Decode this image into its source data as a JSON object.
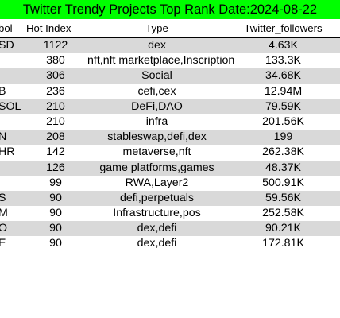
{
  "title": "Twitter Trendy Projects Top Rank Date:2024-08-22",
  "colors": {
    "title_background": "#00ff00",
    "row_shade": "#d9d9d9",
    "header_rule": "#000000"
  },
  "table": {
    "headers": {
      "symbol": "bol",
      "hot_index": "Hot Index",
      "type": "Type",
      "twitter_followers": "Twitter_followers"
    },
    "rows": [
      {
        "symbol": "SD",
        "hot_index": "1122",
        "type": "dex",
        "twitter_followers": "4.63K"
      },
      {
        "symbol": "",
        "hot_index": "380",
        "type": "nft,nft marketplace,Inscription",
        "twitter_followers": "133.3K"
      },
      {
        "symbol": "",
        "hot_index": "306",
        "type": "Social",
        "twitter_followers": "34.68K"
      },
      {
        "symbol": "B",
        "hot_index": "236",
        "type": "cefi,cex",
        "twitter_followers": "12.94M"
      },
      {
        "symbol": "SOL",
        "hot_index": "210",
        "type": "DeFi,DAO",
        "twitter_followers": "79.59K"
      },
      {
        "symbol": "",
        "hot_index": "210",
        "type": "infra",
        "twitter_followers": "201.56K"
      },
      {
        "symbol": "N",
        "hot_index": "208",
        "type": "stableswap,defi,dex",
        "twitter_followers": "199"
      },
      {
        "symbol": "HR",
        "hot_index": "142",
        "type": "metaverse,nft",
        "twitter_followers": "262.38K"
      },
      {
        "symbol": "",
        "hot_index": "126",
        "type": "game platforms,games",
        "twitter_followers": "48.37K"
      },
      {
        "symbol": "",
        "hot_index": "99",
        "type": "RWA,Layer2",
        "twitter_followers": "500.91K"
      },
      {
        "symbol": "S",
        "hot_index": "90",
        "type": "defi,perpetuals",
        "twitter_followers": "59.56K"
      },
      {
        "symbol": "M",
        "hot_index": "90",
        "type": "Infrastructure,pos",
        "twitter_followers": "252.58K"
      },
      {
        "symbol": "O",
        "hot_index": "90",
        "type": "dex,defi",
        "twitter_followers": "90.21K"
      },
      {
        "symbol": "E",
        "hot_index": "90",
        "type": "dex,defi",
        "twitter_followers": "172.81K"
      }
    ]
  }
}
